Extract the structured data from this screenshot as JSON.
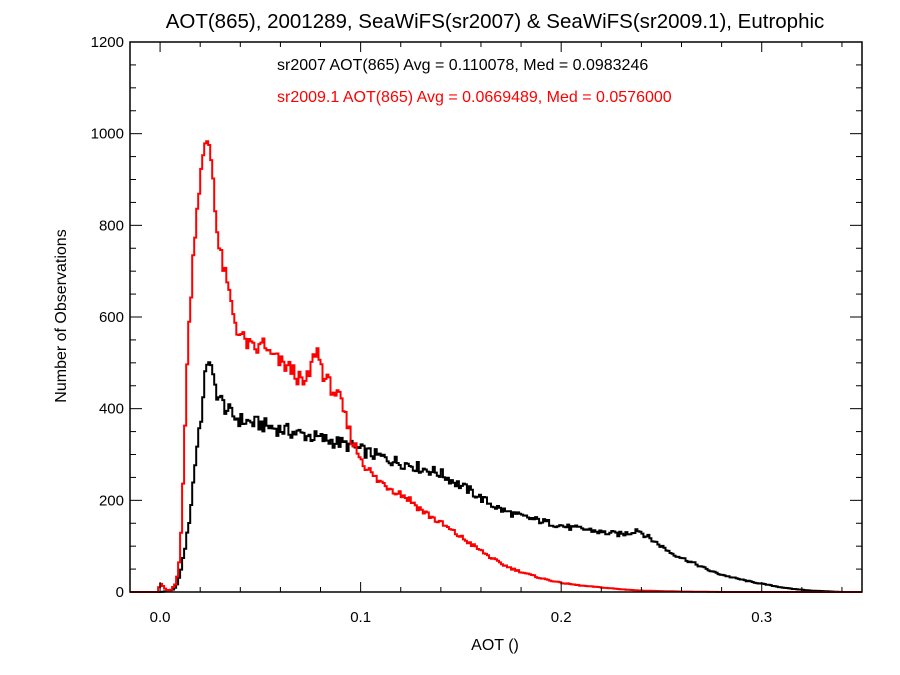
{
  "chart_data": {
    "type": "line",
    "title": "AOT(865), 2001289, SeaWiFS(sr2007) & SeaWiFS(sr2009.1), Eutrophic",
    "xlabel": "AOT ()",
    "ylabel": "Number of Observations",
    "xlim": [
      -0.015,
      0.35
    ],
    "ylim": [
      0,
      1200
    ],
    "xticks": [
      0.0,
      0.1,
      0.2,
      0.3
    ],
    "xtick_labels": [
      "0.0",
      "0.1",
      "0.2",
      "0.3"
    ],
    "yticks": [
      0,
      200,
      400,
      600,
      800,
      1000,
      1200
    ],
    "ytick_labels": [
      "0",
      "200",
      "400",
      "600",
      "800",
      "1000",
      "1200"
    ],
    "grid": false,
    "step": true,
    "bin_width": 0.001,
    "annotations": [
      {
        "text": "sr2007 AOT(865) Avg = 0.110078, Med = 0.0983246",
        "color": "#000000"
      },
      {
        "text": "sr2009.1 AOT(865) Avg = 0.0669489, Med = 0.0576000",
        "color": "#ff0000"
      }
    ],
    "series": [
      {
        "color": "#000000",
        "control_points": [
          [
            0.0,
            0
          ],
          [
            0.004,
            2
          ],
          [
            0.007,
            6
          ],
          [
            0.009,
            20
          ],
          [
            0.011,
            60
          ],
          [
            0.013,
            110
          ],
          [
            0.015,
            170
          ],
          [
            0.017,
            260
          ],
          [
            0.019,
            340
          ],
          [
            0.021,
            400
          ],
          [
            0.022,
            440
          ],
          [
            0.023,
            490
          ],
          [
            0.024,
            520
          ],
          [
            0.025,
            500
          ],
          [
            0.026,
            470
          ],
          [
            0.028,
            440
          ],
          [
            0.03,
            420
          ],
          [
            0.033,
            400
          ],
          [
            0.036,
            385
          ],
          [
            0.04,
            375
          ],
          [
            0.045,
            370
          ],
          [
            0.05,
            366
          ],
          [
            0.055,
            360
          ],
          [
            0.06,
            355
          ],
          [
            0.065,
            350
          ],
          [
            0.07,
            345
          ],
          [
            0.075,
            340
          ],
          [
            0.08,
            335
          ],
          [
            0.085,
            330
          ],
          [
            0.09,
            325
          ],
          [
            0.095,
            318
          ],
          [
            0.1,
            310
          ],
          [
            0.105,
            302
          ],
          [
            0.11,
            295
          ],
          [
            0.115,
            288
          ],
          [
            0.12,
            282
          ],
          [
            0.125,
            278
          ],
          [
            0.13,
            270
          ],
          [
            0.135,
            265
          ],
          [
            0.14,
            258
          ],
          [
            0.145,
            245
          ],
          [
            0.15,
            232
          ],
          [
            0.155,
            220
          ],
          [
            0.16,
            205
          ],
          [
            0.165,
            192
          ],
          [
            0.17,
            180
          ],
          [
            0.175,
            172
          ],
          [
            0.18,
            165
          ],
          [
            0.185,
            160
          ],
          [
            0.19,
            155
          ],
          [
            0.195,
            150
          ],
          [
            0.2,
            145
          ],
          [
            0.205,
            140
          ],
          [
            0.21,
            138
          ],
          [
            0.215,
            135
          ],
          [
            0.22,
            130
          ],
          [
            0.225,
            128
          ],
          [
            0.23,
            126
          ],
          [
            0.235,
            130
          ],
          [
            0.238,
            138
          ],
          [
            0.24,
            130
          ],
          [
            0.245,
            115
          ],
          [
            0.25,
            100
          ],
          [
            0.255,
            85
          ],
          [
            0.26,
            75
          ],
          [
            0.265,
            65
          ],
          [
            0.27,
            55
          ],
          [
            0.275,
            45
          ],
          [
            0.28,
            38
          ],
          [
            0.285,
            32
          ],
          [
            0.29,
            27
          ],
          [
            0.295,
            22
          ],
          [
            0.3,
            18
          ],
          [
            0.305,
            14
          ],
          [
            0.31,
            10
          ],
          [
            0.315,
            7
          ],
          [
            0.32,
            5
          ],
          [
            0.325,
            3
          ],
          [
            0.33,
            2
          ],
          [
            0.335,
            1
          ],
          [
            0.34,
            0
          ],
          [
            0.35,
            0
          ]
        ]
      },
      {
        "color": "#ff0000",
        "control_points": [
          [
            -0.001,
            0
          ],
          [
            0.0,
            20
          ],
          [
            0.001,
            15
          ],
          [
            0.003,
            5
          ],
          [
            0.005,
            2
          ],
          [
            0.008,
            20
          ],
          [
            0.01,
            80
          ],
          [
            0.011,
            170
          ],
          [
            0.012,
            300
          ],
          [
            0.013,
            450
          ],
          [
            0.014,
            540
          ],
          [
            0.015,
            620
          ],
          [
            0.016,
            700
          ],
          [
            0.017,
            760
          ],
          [
            0.018,
            820
          ],
          [
            0.019,
            860
          ],
          [
            0.02,
            900
          ],
          [
            0.021,
            930
          ],
          [
            0.022,
            960
          ],
          [
            0.023,
            975
          ],
          [
            0.024,
            995
          ],
          [
            0.025,
            960
          ],
          [
            0.026,
            930
          ],
          [
            0.027,
            880
          ],
          [
            0.028,
            810
          ],
          [
            0.029,
            760
          ],
          [
            0.03,
            740
          ],
          [
            0.032,
            700
          ],
          [
            0.034,
            660
          ],
          [
            0.036,
            620
          ],
          [
            0.038,
            580
          ],
          [
            0.04,
            560
          ],
          [
            0.043,
            545
          ],
          [
            0.046,
            530
          ],
          [
            0.05,
            530
          ],
          [
            0.052,
            560
          ],
          [
            0.053,
            520
          ],
          [
            0.056,
            515
          ],
          [
            0.06,
            500
          ],
          [
            0.064,
            490
          ],
          [
            0.067,
            480
          ],
          [
            0.07,
            460
          ],
          [
            0.072,
            450
          ],
          [
            0.074,
            470
          ],
          [
            0.076,
            500
          ],
          [
            0.078,
            535
          ],
          [
            0.08,
            500
          ],
          [
            0.082,
            470
          ],
          [
            0.084,
            455
          ],
          [
            0.086,
            445
          ],
          [
            0.088,
            430
          ],
          [
            0.09,
            415
          ],
          [
            0.092,
            385
          ],
          [
            0.094,
            355
          ],
          [
            0.096,
            330
          ],
          [
            0.098,
            310
          ],
          [
            0.1,
            295
          ],
          [
            0.102,
            280
          ],
          [
            0.105,
            260
          ],
          [
            0.108,
            245
          ],
          [
            0.112,
            235
          ],
          [
            0.116,
            225
          ],
          [
            0.12,
            215
          ],
          [
            0.125,
            200
          ],
          [
            0.13,
            180
          ],
          [
            0.135,
            165
          ],
          [
            0.14,
            150
          ],
          [
            0.145,
            135
          ],
          [
            0.15,
            120
          ],
          [
            0.155,
            105
          ],
          [
            0.16,
            90
          ],
          [
            0.165,
            75
          ],
          [
            0.17,
            62
          ],
          [
            0.175,
            52
          ],
          [
            0.18,
            44
          ],
          [
            0.185,
            37
          ],
          [
            0.19,
            30
          ],
          [
            0.195,
            25
          ],
          [
            0.2,
            20
          ],
          [
            0.21,
            14
          ],
          [
            0.22,
            10
          ],
          [
            0.23,
            6
          ],
          [
            0.24,
            3
          ],
          [
            0.25,
            2
          ],
          [
            0.26,
            1
          ],
          [
            0.28,
            0
          ],
          [
            0.35,
            0
          ]
        ]
      }
    ]
  }
}
